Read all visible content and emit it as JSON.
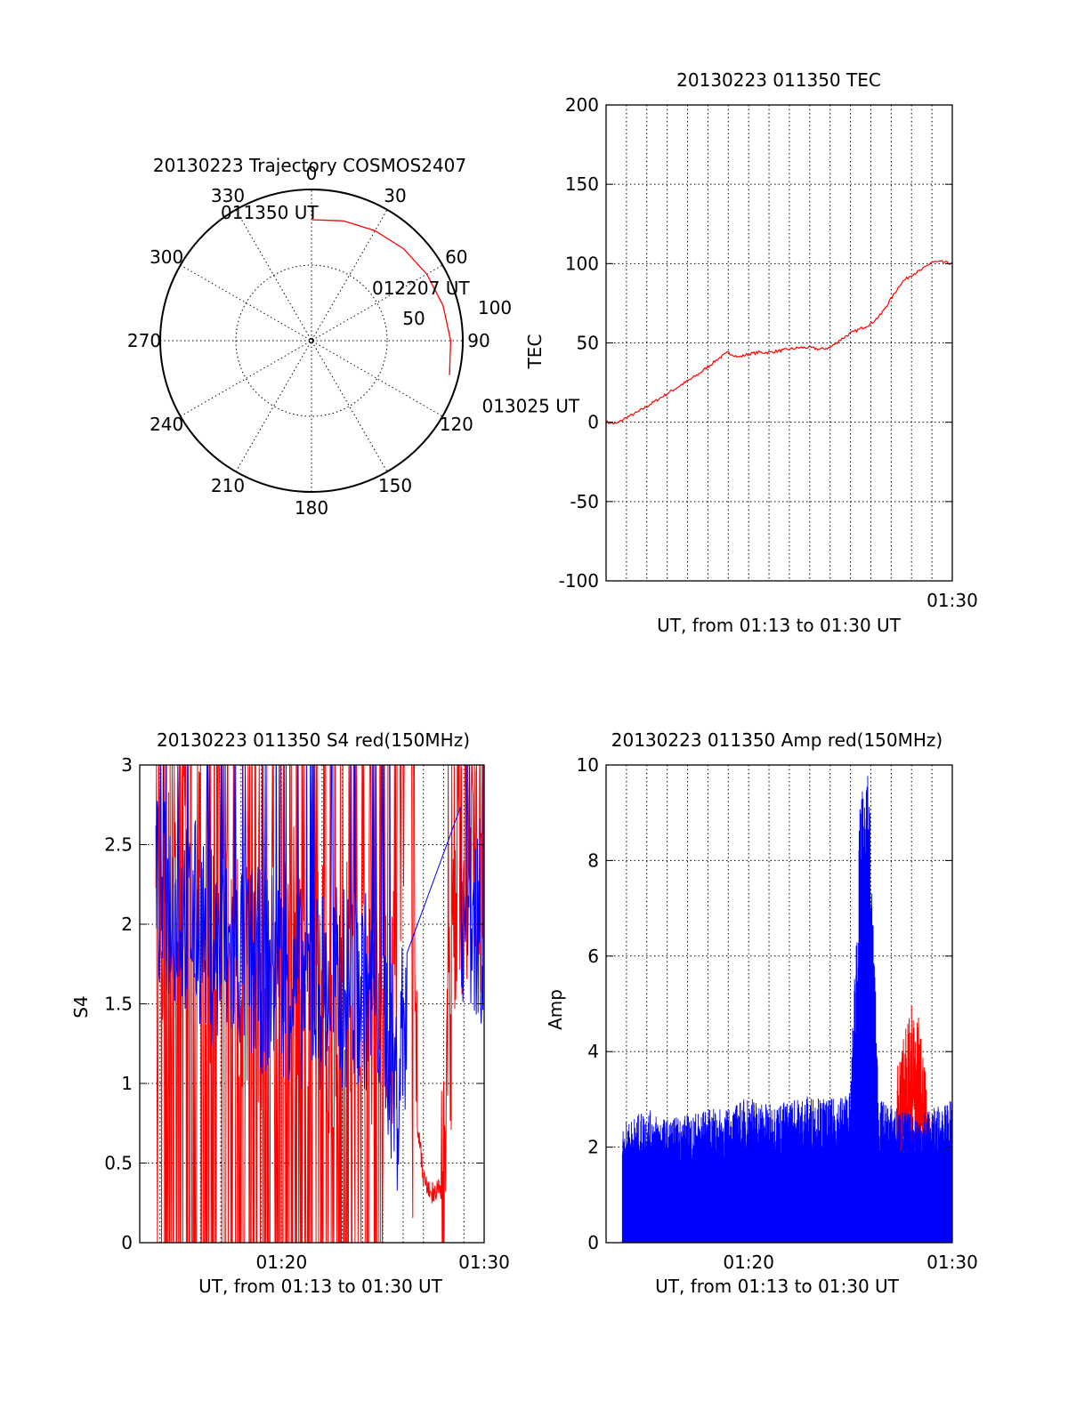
{
  "colors": {
    "red": "#ff0000",
    "blue": "#0000ff",
    "axis": "#000000"
  },
  "chart_data": [
    {
      "type": "polar",
      "title": "20130223 Trajectory COSMOS2407",
      "angle_labels": [
        "0",
        "30",
        "60",
        "90",
        "120",
        "150",
        "180",
        "210",
        "240",
        "270",
        "300",
        "330"
      ],
      "ring_labels": [
        "50",
        "100"
      ],
      "zenith_range": [
        0,
        100
      ],
      "grid": true,
      "trajectory": [
        {
          "az": 0,
          "zen": 80
        },
        {
          "az": 15,
          "zen": 82
        },
        {
          "az": 30,
          "zen": 84
        },
        {
          "az": 45,
          "zen": 86
        },
        {
          "az": 60,
          "zen": 88
        },
        {
          "az": 75,
          "zen": 90
        },
        {
          "az": 90,
          "zen": 92
        },
        {
          "az": 104,
          "zen": 94
        }
      ],
      "annotations": [
        {
          "text": "011350 UT",
          "az": 0,
          "zen": 80
        },
        {
          "text": "012207 UT",
          "az": 60,
          "zen": 88
        },
        {
          "text": "013025 UT",
          "az": 104,
          "zen": 94
        }
      ]
    },
    {
      "type": "line",
      "title": "20130223 011350 TEC",
      "xlabel": "UT, from 01:13 to 01:30 UT",
      "ylabel": "TEC",
      "xlim": [
        0,
        17
      ],
      "ylim": [
        -100,
        200
      ],
      "yticks": [
        "-100",
        "-50",
        "0",
        "50",
        "100",
        "150",
        "200"
      ],
      "xtick_labels": [
        {
          "x": 17,
          "label": "01:30"
        }
      ],
      "grid": true,
      "series": [
        {
          "color": "#ff0000",
          "x": [
            0.0,
            0.5,
            1.0,
            1.5,
            2.0,
            2.5,
            3.0,
            3.5,
            4.0,
            4.5,
            5.0,
            5.5,
            6.0,
            6.5,
            7.0,
            7.5,
            8.0,
            8.5,
            9.0,
            9.5,
            10.0,
            10.5,
            11.0,
            11.5,
            12.0,
            12.5,
            13.0,
            13.5,
            14.0,
            14.5,
            15.0,
            15.5,
            16.0,
            16.5,
            17.0
          ],
          "y": [
            0,
            -1,
            3,
            6,
            10,
            14,
            18,
            22,
            26,
            30,
            35,
            40,
            44,
            41,
            43,
            44,
            44,
            45,
            46,
            47,
            47,
            46,
            47,
            52,
            56,
            59,
            62,
            68,
            78,
            88,
            93,
            96,
            101,
            101,
            100
          ]
        }
      ]
    },
    {
      "type": "line",
      "title": "20130223 011350 S4 red(150MHz)",
      "xlabel": "UT, from 01:13 to 01:30 UT",
      "ylabel": "S4",
      "xlim": [
        0,
        17
      ],
      "ylim": [
        0,
        3
      ],
      "yticks": [
        "0",
        "0.5",
        "1",
        "1.5",
        "2",
        "2.5",
        "3"
      ],
      "xtick_labels": [
        {
          "x": 7,
          "label": "01:20"
        },
        {
          "x": 17,
          "label": "01:30"
        }
      ],
      "grid": true,
      "series": [
        {
          "color": "#ff0000",
          "note": "noisy, frequently dropping to 0 and clipping at 3",
          "x": [
            0.8,
            2,
            3,
            4,
            5,
            6,
            7,
            8,
            9,
            10,
            11,
            12,
            13,
            14,
            14.5,
            15,
            15.5,
            16,
            17
          ],
          "y": [
            1.8,
            2.4,
            2.1,
            1.9,
            1.7,
            1.7,
            1.8,
            1.7,
            1.6,
            1.5,
            1.7,
            1.3,
            1.6,
            0.4,
            0.3,
            0.35,
            1.8,
            2.5,
            2.3
          ]
        },
        {
          "color": "#0000ff",
          "x": [
            0.8,
            2,
            3,
            4,
            5,
            6,
            7,
            8,
            9,
            10,
            11,
            12,
            12.7,
            13,
            14,
            15,
            16,
            17
          ],
          "y": [
            2.2,
            2.1,
            2.0,
            1.8,
            1.8,
            1.7,
            1.7,
            1.6,
            1.6,
            1.6,
            1.6,
            1.5,
            0.9,
            1.4,
            2.0,
            2.2,
            2.1,
            2.0
          ]
        }
      ]
    },
    {
      "type": "line",
      "title": "20130223 011350 Amp red(150MHz)",
      "xlabel": "UT, from 01:13 to 01:30 UT",
      "ylabel": "Amp",
      "xlim": [
        0,
        17
      ],
      "ylim": [
        0,
        10
      ],
      "yticks": [
        "0",
        "2",
        "4",
        "6",
        "8",
        "10"
      ],
      "xtick_labels": [
        {
          "x": 7,
          "label": "01:20"
        },
        {
          "x": 17,
          "label": "01:30"
        }
      ],
      "grid": true,
      "series": [
        {
          "color": "#0000ff",
          "note": "dense noise from 0 up to about 2.5, spike near 01:25",
          "x": [
            0.8,
            2,
            3,
            4,
            5,
            6,
            7,
            8,
            9,
            10,
            11,
            12,
            12.5,
            12.9,
            13.4,
            14,
            15,
            16,
            17
          ],
          "y": [
            2.5,
            2.8,
            2.6,
            2.7,
            2.8,
            2.8,
            3.1,
            2.9,
            3.0,
            3.1,
            3.0,
            3.2,
            9.6,
            9.8,
            3.0,
            2.9,
            2.7,
            2.8,
            3.0
          ]
        },
        {
          "color": "#ff0000",
          "x": [
            14.3,
            14.7,
            15.1,
            15.5,
            15.9
          ],
          "y": [
            3.8,
            4.6,
            5.2,
            4.4,
            2.6
          ]
        }
      ]
    }
  ]
}
